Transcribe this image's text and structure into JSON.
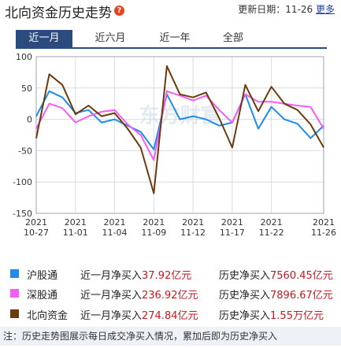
{
  "header": {
    "title": "北向资金历史走势",
    "help_icon": "?",
    "update_label": "更新日期：",
    "update_date": "11-26",
    "more_link": "更多"
  },
  "tabs": [
    {
      "label": "近一月",
      "active": true
    },
    {
      "label": "近六月",
      "active": false
    },
    {
      "label": "近一年",
      "active": false
    },
    {
      "label": "全部",
      "active": false
    }
  ],
  "chart_data": {
    "type": "line",
    "x": [
      "2021-10-27",
      "2021-10-28",
      "2021-10-29",
      "2021-11-01",
      "2021-11-02",
      "2021-11-03",
      "2021-11-04",
      "2021-11-05",
      "2021-11-08",
      "2021-11-09",
      "2021-11-10",
      "2021-11-11",
      "2021-11-12",
      "2021-11-15",
      "2021-11-16",
      "2021-11-17",
      "2021-11-18",
      "2021-11-19",
      "2021-11-22",
      "2021-11-23",
      "2021-11-24",
      "2021-11-25",
      "2021-11-26"
    ],
    "xticks": [
      {
        "date": "2021-10-27",
        "line1": "2021",
        "line2": "10-27"
      },
      {
        "date": "2021-11-01",
        "line1": "2021",
        "line2": "11-01"
      },
      {
        "date": "2021-11-04",
        "line1": "2021",
        "line2": "11-04"
      },
      {
        "date": "2021-11-09",
        "line1": "2021",
        "line2": "11-09"
      },
      {
        "date": "2021-11-12",
        "line1": "2021",
        "line2": "11-12"
      },
      {
        "date": "2021-11-17",
        "line1": "2021",
        "line2": "11-17"
      },
      {
        "date": "2021-11-22",
        "line1": "2021",
        "line2": "11-22"
      },
      {
        "date": "2021-11-26",
        "line1": "2021",
        "line2": "11-26"
      }
    ],
    "yticks": [
      100,
      50,
      0,
      -50,
      -100,
      -150
    ],
    "ylim": [
      -150,
      100
    ],
    "grid": true,
    "watermark": "东方财富",
    "series": [
      {
        "name": "沪股通",
        "color": "#1f8ceb",
        "values": [
          5,
          45,
          35,
          10,
          15,
          -5,
          0,
          -10,
          -20,
          -48,
          40,
          0,
          5,
          0,
          -10,
          -5,
          40,
          -15,
          20,
          0,
          -7,
          -30,
          -10
        ]
      },
      {
        "name": "深股通",
        "color": "#f55cf5",
        "values": [
          -15,
          25,
          18,
          -5,
          5,
          12,
          15,
          -8,
          -25,
          -65,
          45,
          38,
          30,
          38,
          15,
          -5,
          40,
          28,
          28,
          25,
          22,
          20,
          -15
        ]
      },
      {
        "name": "北向资金",
        "color": "#6b3a0c",
        "values": [
          -30,
          72,
          55,
          8,
          22,
          5,
          10,
          -15,
          -45,
          -118,
          85,
          40,
          35,
          43,
          2,
          -45,
          55,
          13,
          52,
          25,
          15,
          -8,
          -45
        ]
      }
    ]
  },
  "legend": [
    {
      "name": "沪股通",
      "color": "#1f8ceb",
      "month_label": "近一月净买入",
      "month_value": "37.92亿元",
      "hist_label": "历史净买入",
      "hist_value": "7560.45亿元"
    },
    {
      "name": "深股通",
      "color": "#f55cf5",
      "month_label": "近一月净买入",
      "month_value": "236.92亿元",
      "hist_label": "历史净买入",
      "hist_value": "7896.67亿元"
    },
    {
      "name": "北向资金",
      "color": "#6b3a0c",
      "month_label": "近一月净买入",
      "month_value": "274.84亿元",
      "hist_label": "历史净买入",
      "hist_value": "1.55万亿元"
    }
  ],
  "note": "注：历史走势图展示每日成交净买入情况，累加后即为历史净买入"
}
